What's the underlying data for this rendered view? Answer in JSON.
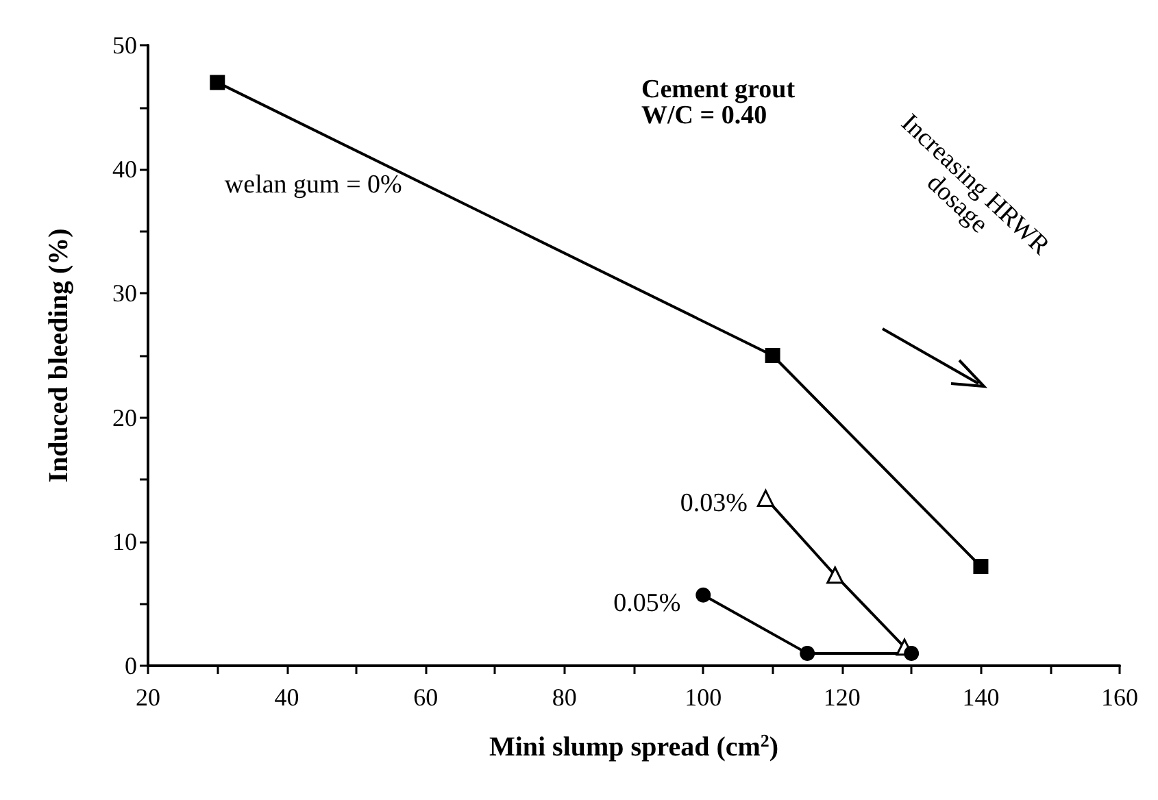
{
  "chart_data": {
    "type": "line",
    "xlabel": "Mini slump spread (cm$^{2}$)",
    "ylabel": "Induced bleeding (%)",
    "xlim": [
      20,
      160
    ],
    "xticks": [
      20,
      {
        "value": 30,
        "label": null
      },
      40,
      {
        "value": 50,
        "label": null
      },
      60,
      {
        "value": 70,
        "label": null
      },
      80,
      {
        "value": 90,
        "label": null
      },
      100,
      {
        "value": 110,
        "label": null
      },
      120,
      {
        "value": 130,
        "label": null
      },
      140,
      {
        "value": 150,
        "label": null
      },
      160
    ],
    "ylim": [
      0,
      50
    ],
    "yticks": [
      0,
      {
        "value": 5,
        "label": null
      },
      10,
      {
        "value": 15,
        "label": null
      },
      20,
      {
        "value": 25,
        "label": null
      },
      30,
      {
        "value": 35,
        "label": null
      },
      40,
      {
        "value": 45,
        "label": null
      },
      50
    ],
    "grid": false,
    "legend": false,
    "line_style": "solid",
    "series": [
      {
        "name": "welan gum = 0%",
        "color": "#000000",
        "marker": "square",
        "x": [
          30,
          110,
          140
        ],
        "values": [
          47,
          25,
          8
        ]
      },
      {
        "name": "0.03%",
        "color": "#000000",
        "marker": "triangle",
        "x": [
          109,
          119,
          129
        ],
        "values": [
          13.5,
          7.3,
          1.5
        ]
      },
      {
        "name": "0.05%",
        "color": "#000000",
        "marker": "circle",
        "x": [
          100,
          115,
          130
        ],
        "values": [
          5.7,
          1,
          1
        ]
      }
    ],
    "annotations": [
      "Cement grout\nW/C = 0.40",
      "Increasing HRWR\ndosage"
    ]
  }
}
